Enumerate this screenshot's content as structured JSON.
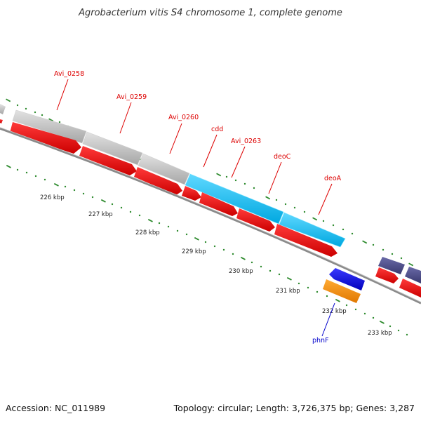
{
  "map": {
    "title": "Agrobacterium vitis S4 chromosome 1, complete genome",
    "accession_label": "Accession: NC_011989",
    "topology_label": "Topology: circular; Length: 3,726,375 bp; Genes: 3,287",
    "colors": {
      "backbone": "#888888",
      "tick": "#2e8b2e",
      "cds": "#ee0000",
      "gene": "#b8b8b8",
      "rna": "#00b7ee",
      "gene_label": "#dd0000",
      "special_label": "#0000cc",
      "purple_gene": "#4d4d88",
      "blue_gene": "#0000dd",
      "orange_gene": "#ff8c00"
    },
    "kbp_labels": [
      {
        "text": "226 kbp"
      },
      {
        "text": "227 kbp"
      },
      {
        "text": "228 kbp"
      },
      {
        "text": "229 kbp"
      },
      {
        "text": "230 kbp"
      },
      {
        "text": "231 kbp"
      },
      {
        "text": "232 kbp"
      },
      {
        "text": "233 kbp"
      }
    ],
    "gene_labels": [
      {
        "text": "Avi_0258",
        "color": "red"
      },
      {
        "text": "Avi_0259",
        "color": "red"
      },
      {
        "text": "Avi_0260",
        "color": "red"
      },
      {
        "text": "cdd",
        "color": "red"
      },
      {
        "text": "Avi_0263",
        "color": "red"
      },
      {
        "text": "deoC",
        "color": "red"
      },
      {
        "text": "deoA",
        "color": "red"
      },
      {
        "text": "phnF",
        "color": "blue"
      }
    ]
  }
}
